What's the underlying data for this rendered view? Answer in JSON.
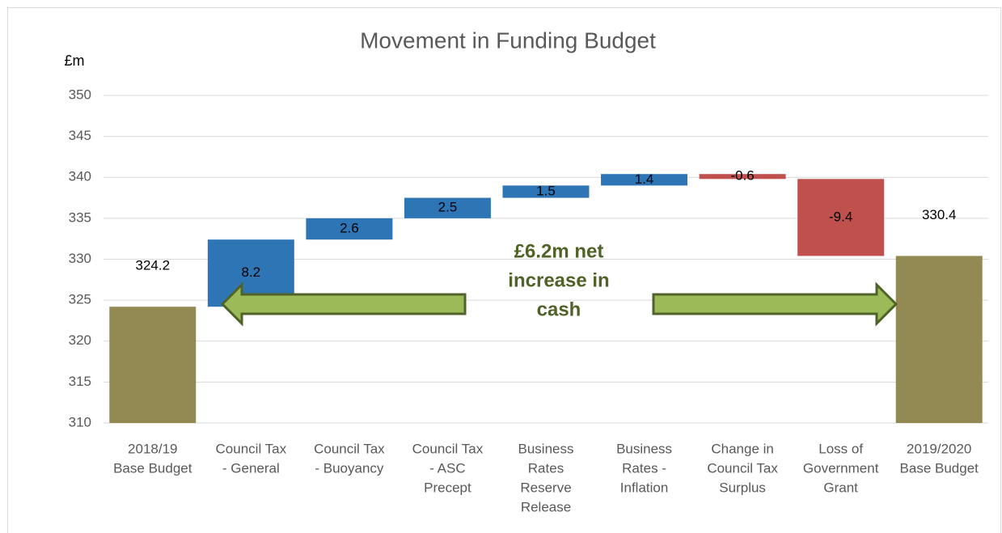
{
  "chart_data": {
    "type": "waterfall",
    "title": "Movement in Funding Budget",
    "y_label": "£m",
    "categories": [
      [
        "2018/19",
        "Base Budget"
      ],
      [
        "Council Tax",
        "- General"
      ],
      [
        "Council Tax",
        "- Buoyancy"
      ],
      [
        "Council Tax",
        "- ASC",
        "Precept"
      ],
      [
        "Business",
        "Rates",
        "Reserve",
        "Release"
      ],
      [
        "Business",
        "Rates -",
        "Inflation"
      ],
      [
        "Change in",
        "Council Tax",
        "Surplus"
      ],
      [
        "Loss of",
        "Government",
        "Grant"
      ],
      [
        "2019/2020",
        "Base Budget"
      ]
    ],
    "values": [
      324.2,
      8.2,
      2.6,
      2.5,
      1.5,
      1.4,
      -0.6,
      -9.4,
      330.4
    ],
    "is_total": [
      true,
      false,
      false,
      false,
      false,
      false,
      false,
      false,
      true
    ],
    "total_color": "#938953",
    "increase_color": "#2e75b6",
    "decrease_color": "#c0504d",
    "ylim": [
      310,
      350
    ],
    "yticks": [
      310,
      315,
      320,
      325,
      330,
      335,
      340,
      345,
      350
    ],
    "grid": true,
    "annotation": [
      "£6.2m net",
      "increase in",
      "cash"
    ]
  }
}
